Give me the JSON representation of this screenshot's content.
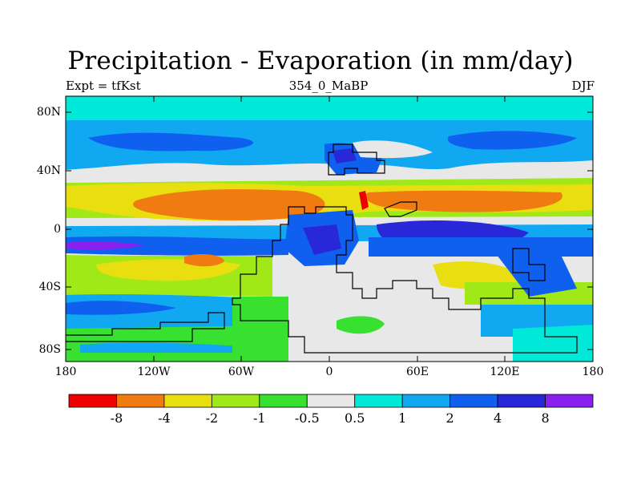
{
  "title": "Precipitation - Evaporation (in mm/day)",
  "subtitle_left": "Expt = tfKst",
  "subtitle_center": "354_0_MaBP",
  "subtitle_right": "DJF",
  "y_ticks": [
    "80N",
    "40N",
    "0",
    "40S",
    "80S"
  ],
  "x_ticks": [
    "180",
    "120W",
    "60W",
    "0",
    "60E",
    "120E",
    "180"
  ],
  "colorbar": {
    "labels": [
      "-8",
      "-4",
      "-2",
      "-1",
      "-0.5",
      "0.5",
      "1",
      "2",
      "4",
      "8"
    ],
    "colors": [
      "#ee0000",
      "#f07b10",
      "#e8de10",
      "#a0e818",
      "#38e030",
      "#e8e8e8",
      "#00e8d8",
      "#10a8f0",
      "#1060f0",
      "#2828d8",
      "#8a20f0"
    ]
  },
  "palette": {
    "n8": "#ee0000",
    "n4": "#f07b10",
    "n2": "#e8de10",
    "n1": "#a0e818",
    "n05": "#38e030",
    "z": "#e8e8e8",
    "p05": "#00e8d8",
    "p1": "#10a8f0",
    "p2": "#1060f0",
    "p4": "#2828d8",
    "p8": "#8a20f0"
  }
}
